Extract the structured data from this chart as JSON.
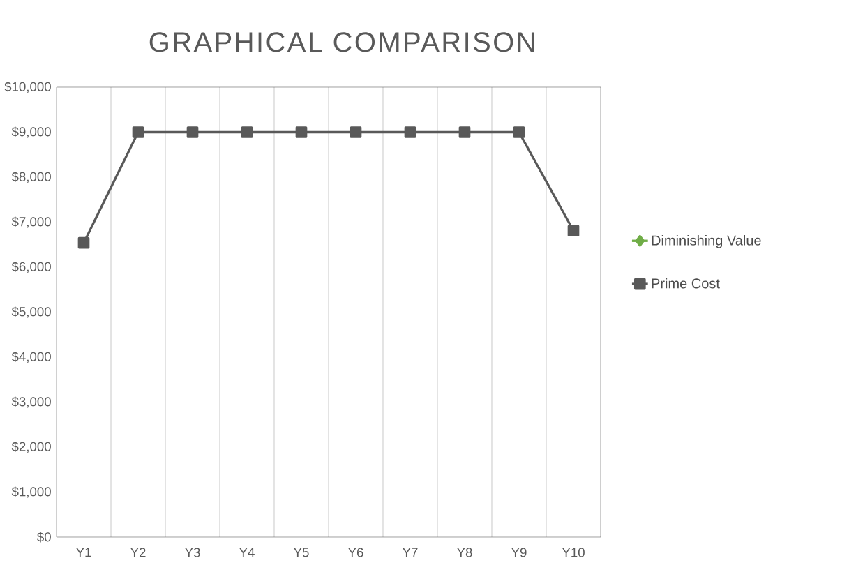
{
  "chart_data": {
    "type": "line",
    "title": "GRAPHICAL COMPARISON",
    "categories": [
      "Y1",
      "Y2",
      "Y3",
      "Y4",
      "Y5",
      "Y6",
      "Y7",
      "Y8",
      "Y9",
      "Y10"
    ],
    "series": [
      {
        "name": "Diminishing Value",
        "color": "#70ad47",
        "marker": "diamond",
        "values": [
          null,
          null,
          null,
          null,
          null,
          null,
          null,
          null,
          null,
          null
        ]
      },
      {
        "name": "Prime Cost",
        "color": "#595959",
        "marker": "square",
        "values": [
          6540,
          9000,
          9000,
          9000,
          9000,
          9000,
          9000,
          9000,
          9000,
          6810
        ]
      }
    ],
    "ylim": [
      0,
      10000
    ],
    "yticks": [
      {
        "value": 0,
        "label": "$0"
      },
      {
        "value": 1000,
        "label": "$1,000"
      },
      {
        "value": 2000,
        "label": "$2,000"
      },
      {
        "value": 3000,
        "label": "$3,000"
      },
      {
        "value": 4000,
        "label": "$4,000"
      },
      {
        "value": 5000,
        "label": "$5,000"
      },
      {
        "value": 6000,
        "label": "$6,000"
      },
      {
        "value": 7000,
        "label": "$7,000"
      },
      {
        "value": 8000,
        "label": "$8,000"
      },
      {
        "value": 9000,
        "label": "$9,000"
      },
      {
        "value": 10000,
        "label": "$10,000"
      }
    ],
    "grid": "x",
    "legend": "right",
    "line_style": "solid"
  }
}
